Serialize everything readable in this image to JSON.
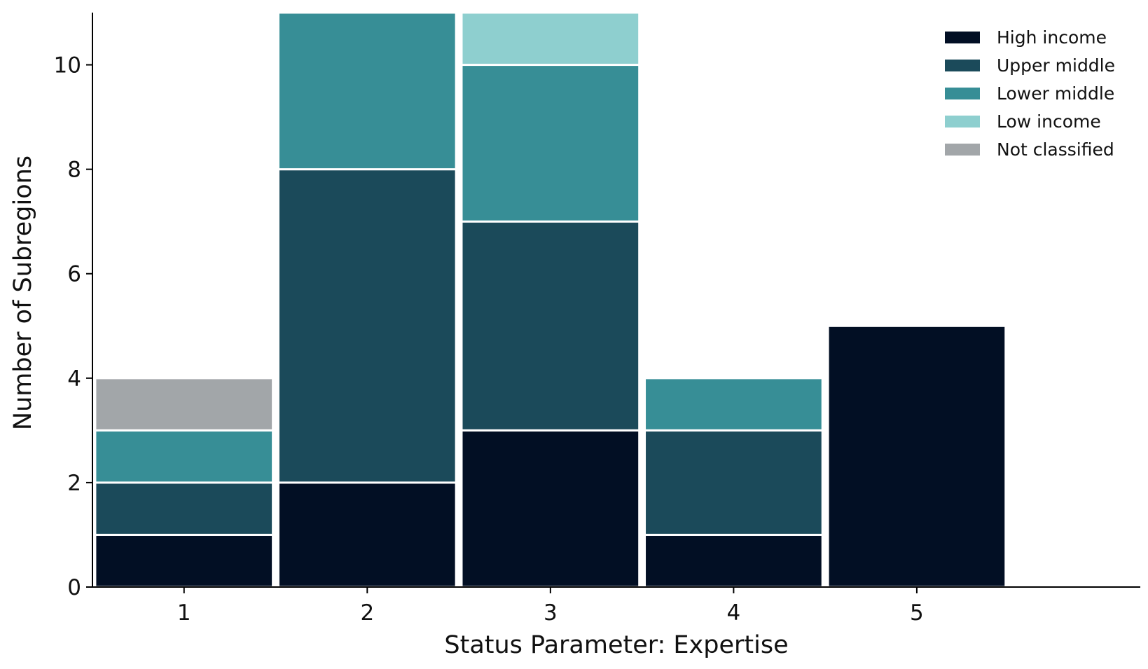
{
  "chart_data": {
    "type": "bar",
    "stacked": true,
    "categories": [
      "1",
      "2",
      "3",
      "4",
      "5"
    ],
    "series": [
      {
        "name": "High income",
        "color": "#020f24",
        "values": [
          1,
          2,
          3,
          1,
          5
        ]
      },
      {
        "name": "Upper middle",
        "color": "#1b4a5a",
        "values": [
          1,
          6,
          4,
          2,
          0
        ]
      },
      {
        "name": "Lower middle",
        "color": "#378e96",
        "values": [
          1,
          3,
          3,
          1,
          0
        ]
      },
      {
        "name": "Low income",
        "color": "#8ecfcf",
        "values": [
          0,
          0,
          1,
          0,
          0
        ]
      },
      {
        "name": "Not classified",
        "color": "#a2a6a9",
        "values": [
          1,
          0,
          0,
          0,
          0
        ]
      }
    ],
    "xlabel": "Status Parameter: Expertise",
    "ylabel": "Number of Subregions",
    "ylim": [
      0,
      11
    ],
    "yticks": [
      0,
      2,
      4,
      6,
      8,
      10
    ],
    "grid": false,
    "legend_position": "top-right"
  }
}
